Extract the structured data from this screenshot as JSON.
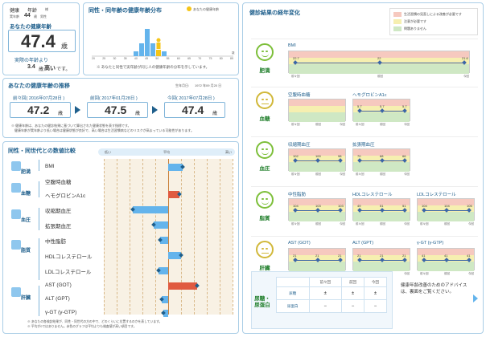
{
  "user": {
    "label_health": "健康",
    "label_age": "年齢",
    "age_suffix": "様",
    "age_label": "実年齢",
    "age": "44",
    "age_unit": "歳",
    "gender": "男性",
    "health_age_label": "あなたの健康年齢",
    "health_age": "47.4",
    "health_age_unit": "歳",
    "diff_text_1": "実際の年齢より",
    "diff_value": "3.4",
    "diff_unit": "歳",
    "diff_word": "高い",
    "diff_end": "です。"
  },
  "dist": {
    "title": "同性・同年齢の健康年齢分布",
    "legend": "あなたの健康年齢",
    "note": "※ あなたと同性で実年齢が同じ人の健康年齢の分布を示しています。",
    "axis_unit": "歳",
    "ticks": [
      "20",
      "25",
      "30",
      "35",
      "40",
      "45",
      "50",
      "55",
      "60",
      "65",
      "70",
      "75",
      "80",
      "85"
    ]
  },
  "trend": {
    "title": "あなたの健康年齢の推移",
    "birth_label": "生年月日:",
    "birth": "1972 年09 月20 日",
    "items": [
      {
        "label": "前々回( 2016年07月28日 )",
        "value": "47.2",
        "unit": "歳"
      },
      {
        "label": "前回( 2017年01月28日 )",
        "value": "47.5",
        "unit": "歳"
      },
      {
        "label": "今回( 2017年07月28日 )",
        "value": "47.4",
        "unit": "歳"
      }
    ],
    "note1": "※ 健康年齢は、あなたの健診結果に基づいて算出された健康状態を表す指標です。",
    "note2": "健康年齢が実年齢より低い場合は健康状態が良好で、高い場合は生活習慣病などのリスクが高まっている可能性があります。"
  },
  "compare": {
    "title": "同性・同世代との数値比較",
    "scale_low": "低い",
    "scale_mid": "平均",
    "scale_high": "高い",
    "groups": [
      {
        "name": "肥満",
        "icon": "body-icon"
      },
      {
        "name": "血糖",
        "icon": "blood-drop-icon"
      },
      {
        "name": "血圧",
        "icon": "blood-pressure-icon"
      },
      {
        "name": "脂質",
        "icon": "lipid-icon"
      },
      {
        "name": "肝臓",
        "icon": "liver-icon"
      }
    ],
    "rows": [
      {
        "label": "BMI",
        "value": 0.45
      },
      {
        "label": "空腹時血糖",
        "value": null
      },
      {
        "label": "ヘモグロビンA1c",
        "value": 0.35
      },
      {
        "label": "収縮期血圧",
        "value": -1.1
      },
      {
        "label": "拡張期血圧",
        "value": -0.45
      },
      {
        "label": "中性脂肪",
        "value": -0.25
      },
      {
        "label": "HDLコレステロール",
        "value": 0.4
      },
      {
        "label": "LDLコレステロール",
        "value": -0.3
      },
      {
        "label": "AST (GOT)",
        "value": 0.9
      },
      {
        "label": "ALT (GPT)",
        "value": -0.2
      },
      {
        "label": "γ-GT (γ-GTP)",
        "value": -0.15
      }
    ],
    "note1": "※ あなたの各検診結果が、同性・同世代の方の中で、どのくらいに位置するのかを表しています。",
    "note2": "※ 平均が0ではありません。赤色のグラフは平均よりも検査値が高い項目です。"
  },
  "history": {
    "title": "健診結果の経年変化",
    "legend": [
      {
        "text": "生活習慣の見直しによる改善が必要です",
        "color": "#f6c9bf"
      },
      {
        "text": "注意が必要です",
        "color": "#f6efb0"
      },
      {
        "text": "問題ありません",
        "color": "#cfe8c4"
      }
    ],
    "periods": [
      "前々回",
      "前回",
      "今回"
    ],
    "sections": [
      {
        "category": "肥満",
        "face": "good",
        "charts": [
          {
            "name": "BMI",
            "values": [
              "22.7",
              "22",
              "21.6"
            ]
          }
        ]
      },
      {
        "category": "血糖",
        "face": "neutral",
        "charts": [
          {
            "name": "空腹時血糖",
            "values": []
          },
          {
            "name": "ヘモグロビンA1c",
            "values": [
              "5.7",
              "5.7",
              "5.7"
            ]
          }
        ]
      },
      {
        "category": "血圧",
        "face": "good",
        "charts": [
          {
            "name": "収縮期血圧",
            "values": [
              "102",
              "100",
              "98"
            ]
          },
          {
            "name": "拡張期血圧",
            "values": [
              "70",
              "68",
              "66"
            ]
          }
        ]
      },
      {
        "category": "脂質",
        "face": "good",
        "charts": [
          {
            "name": "中性脂肪",
            "values": [
              "104",
              "103",
              "103"
            ]
          },
          {
            "name": "HDLコレステロール",
            "values": [
              "49",
              "51",
              "51"
            ]
          },
          {
            "name": "LDLコレステロール",
            "values": [
              "104",
              "104",
              "105"
            ]
          }
        ]
      },
      {
        "category": "肝臓",
        "face": "neutral",
        "charts": [
          {
            "name": "AST (GOT)",
            "values": [
              "21",
              "21",
              "21"
            ]
          },
          {
            "name": "ALT (GPT)",
            "values": [
              "21",
              "21",
              "21"
            ]
          },
          {
            "name": "γ-GT (γ-GTP)",
            "values": [
              "41",
              "41",
              "41"
            ]
          }
        ]
      }
    ],
    "urine": {
      "category": "尿糖・尿蛋白",
      "headers": [
        "前々回",
        "前回",
        "今回"
      ],
      "rows": [
        {
          "label": "尿糖",
          "values": [
            "±",
            "±",
            "±"
          ]
        },
        {
          "label": "尿蛋白",
          "values": [
            "−",
            "−",
            "−"
          ]
        }
      ]
    },
    "advice": "健康年齢改善のためのアドバイスは、裏面をご覧ください。"
  }
}
